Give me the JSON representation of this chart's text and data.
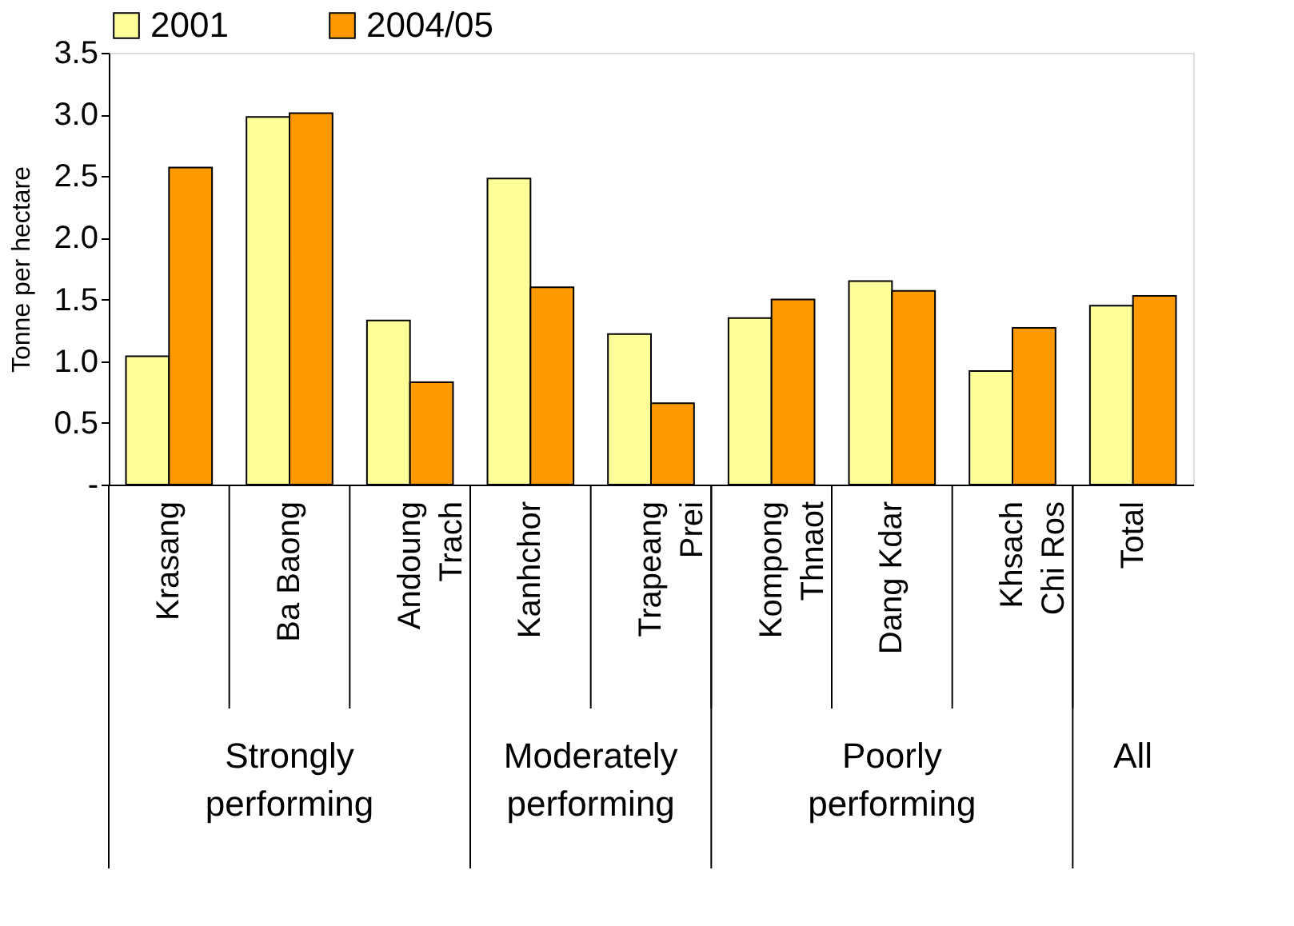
{
  "chart_data": {
    "type": "bar",
    "ylabel": "Tonne per hectare",
    "categories": [
      "Krasang",
      "Ba Baong",
      "Andoung Trach",
      "Kanhchor",
      "Trapeang Prei",
      "Kompong Thnaot",
      "Dang Kdar",
      "Khsach Chi Ros",
      "Total"
    ],
    "series": [
      {
        "name": "2001",
        "color": "#ffff99",
        "values": [
          1.04,
          2.98,
          1.33,
          2.48,
          1.22,
          1.35,
          1.65,
          0.92,
          1.45
        ]
      },
      {
        "name": "2004/05",
        "color": "#ff9900",
        "values": [
          2.57,
          3.01,
          0.83,
          1.6,
          0.66,
          1.5,
          1.57,
          1.27,
          1.53
        ]
      }
    ],
    "ylim": [
      0,
      3.5
    ],
    "yticks": [
      {
        "value": 0,
        "label": "-"
      },
      0.5,
      {
        "value": 1,
        "label": "1.0"
      },
      1.5,
      {
        "value": 2,
        "label": "2.0"
      },
      2.5,
      {
        "value": 3,
        "label": "3.0"
      },
      3.5
    ],
    "grid": false,
    "legend": "top",
    "annotations": [
      "Strongly performing",
      "Moderately performing",
      "Poorly performing",
      "All"
    ]
  }
}
